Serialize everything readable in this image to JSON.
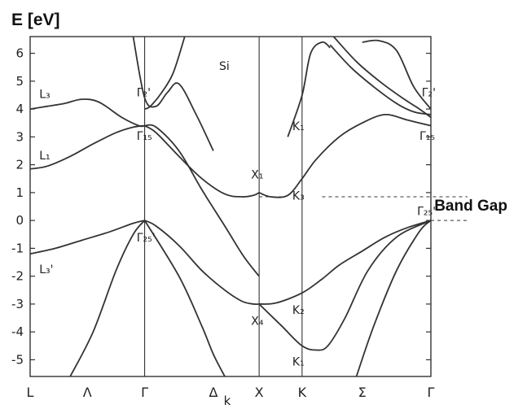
{
  "chart_data": {
    "type": "line",
    "title": "",
    "ylabel": "E [eV]",
    "ylim": [
      -5.6,
      6.6
    ],
    "yticks": [
      "6",
      "5",
      "4",
      "3",
      "2",
      "1",
      "0",
      "-1",
      "-2",
      "-3",
      "-4",
      "-5"
    ],
    "x_ticks": [
      {
        "label": "L",
        "pos": 0
      },
      {
        "label": "Λ",
        "pos": 0.5
      },
      {
        "label": "Γ",
        "pos": 1
      },
      {
        "label": "Δ",
        "pos": 1.6
      },
      {
        "label": "X",
        "pos": 2
      },
      {
        "label": "K",
        "pos": 2.375
      },
      {
        "label": "Σ",
        "pos": 2.9
      },
      {
        "label": "Γ",
        "pos": 3.5
      }
    ],
    "k_label": "k",
    "symmetry_lines": [
      1,
      2,
      2.375
    ],
    "grid": false,
    "series": [
      {
        "x": [
          0,
          0.22,
          0.46,
          0.7,
          0.9,
          1
        ],
        "y": [
          -1.2,
          -1.0,
          -0.7,
          -0.4,
          -0.1,
          0.0
        ]
      },
      {
        "x": [
          0.35,
          0.55,
          0.75,
          0.9,
          1
        ],
        "y": [
          -5.6,
          -4.0,
          -1.8,
          -0.5,
          0.0
        ]
      },
      {
        "x": [
          1,
          1.1,
          1.3,
          1.5,
          1.7,
          1.85,
          1.95,
          2
        ],
        "y": [
          0.0,
          -0.2,
          -0.9,
          -1.8,
          -2.5,
          -2.9,
          -3.0,
          -3.0
        ]
      },
      {
        "x": [
          1,
          1.3,
          1.5,
          1.6,
          1.7
        ],
        "y": [
          0.0,
          -2.0,
          -3.8,
          -4.8,
          -5.6
        ]
      },
      {
        "x": [
          2,
          2.15,
          2.375,
          2.55,
          2.7,
          2.9,
          3.1,
          3.3,
          3.5
        ],
        "y": [
          -3.0,
          -2.96,
          -2.6,
          -2.1,
          -1.6,
          -1.1,
          -0.6,
          -0.25,
          0.0
        ]
      },
      {
        "x": [
          2,
          2.2,
          2.375,
          2.5,
          2.6,
          2.75,
          2.95,
          3.2,
          3.5
        ],
        "y": [
          -3.0,
          -3.8,
          -4.5,
          -4.65,
          -4.5,
          -3.5,
          -1.8,
          -0.6,
          0.0
        ]
      },
      {
        "x": [
          2.85,
          3.0,
          3.2,
          3.4,
          3.5
        ],
        "y": [
          -5.6,
          -3.8,
          -1.8,
          -0.4,
          0.0
        ]
      },
      {
        "x": [
          0,
          0.15,
          0.35,
          0.55,
          0.75,
          0.9,
          1
        ],
        "y": [
          1.85,
          1.95,
          2.3,
          2.75,
          3.15,
          3.35,
          3.4
        ]
      },
      {
        "x": [
          1,
          1.1,
          1.3,
          1.5,
          1.7,
          1.85,
          1.95,
          2
        ],
        "y": [
          3.4,
          3.15,
          2.3,
          1.5,
          0.95,
          0.85,
          0.9,
          1.0
        ]
      },
      {
        "x": [
          1,
          1.1,
          1.3,
          1.5,
          1.7,
          1.85,
          1.95,
          2
        ],
        "y": [
          3.4,
          3.35,
          2.5,
          1.1,
          -0.2,
          -1.2,
          -1.75,
          -2.0
        ]
      },
      {
        "x": [
          2,
          2.1,
          2.25,
          2.375,
          2.5,
          2.7,
          2.9,
          3.1,
          3.3,
          3.5
        ],
        "y": [
          1.0,
          0.85,
          0.9,
          1.5,
          2.2,
          3.0,
          3.5,
          3.8,
          3.6,
          3.4
        ]
      },
      {
        "x": [
          0,
          0.15,
          0.3,
          0.45,
          0.6,
          0.8,
          0.95,
          1
        ],
        "y": [
          4.0,
          4.1,
          4.2,
          4.35,
          4.25,
          3.7,
          3.4,
          3.4
        ]
      },
      {
        "x": [
          0.9,
          1.0,
          1.1,
          1.2,
          1.3,
          1.45,
          1.6
        ],
        "y": [
          6.6,
          4.4,
          4.1,
          4.6,
          4.9,
          3.8,
          2.5
        ]
      },
      {
        "x": [
          1.0,
          1.05,
          1.15,
          1.25,
          1.35
        ],
        "y": [
          4.0,
          4.1,
          4.6,
          5.3,
          6.6
        ]
      },
      {
        "x": [
          2.25,
          2.375,
          2.45,
          2.55,
          2.62
        ],
        "y": [
          3.0,
          4.5,
          6.0,
          6.4,
          6.2
        ]
      },
      {
        "x": [
          2.62,
          2.8,
          3.0,
          3.2,
          3.35,
          3.5
        ],
        "y": [
          6.3,
          5.5,
          4.8,
          4.2,
          3.9,
          3.8
        ]
      },
      {
        "x": [
          2.65,
          2.85,
          3.05,
          3.25,
          3.4,
          3.5
        ],
        "y": [
          6.6,
          5.7,
          5.0,
          4.4,
          4.0,
          3.7
        ]
      },
      {
        "x": [
          2.9,
          3.05,
          3.2,
          3.35,
          3.5
        ],
        "y": [
          6.4,
          6.45,
          6.1,
          4.8,
          4.0
        ]
      }
    ],
    "band_gap_dashes": [
      {
        "x": [
          2.0,
          2.2
        ],
        "y": [
          0.85,
          0.85
        ]
      },
      {
        "x": [
          2.55,
          3.82
        ],
        "y": [
          0.85,
          0.85
        ]
      },
      {
        "x": [
          3.5,
          3.82
        ],
        "y": [
          0.0,
          0.0
        ]
      }
    ],
    "annotations": [
      {
        "text": "Si",
        "x": 1.65,
        "y": 5.4
      },
      {
        "text": "L₃",
        "x": 0.08,
        "y": 4.4
      },
      {
        "text": "L₁",
        "x": 0.08,
        "y": 2.2
      },
      {
        "text": "L₃'",
        "x": 0.08,
        "y": -1.9
      },
      {
        "text": "Γ₂'",
        "x": 0.93,
        "y": 4.45
      },
      {
        "text": "Γ₁₅",
        "x": 0.93,
        "y": 2.9
      },
      {
        "text": "Γ₂₅'",
        "x": 0.93,
        "y": -0.75
      },
      {
        "text": "X₁",
        "x": 1.93,
        "y": 1.5
      },
      {
        "text": "X₄",
        "x": 1.93,
        "y": -3.75
      },
      {
        "text": "K₁",
        "x": 2.29,
        "y": 3.25
      },
      {
        "text": "K₃",
        "x": 2.29,
        "y": 0.75
      },
      {
        "text": "K₂",
        "x": 2.29,
        "y": -3.35
      },
      {
        "text": "K₁",
        "x": 2.29,
        "y": -5.2
      },
      {
        "text": "Γ₂'",
        "x": 3.42,
        "y": 4.45
      },
      {
        "text": "Γ₁₅",
        "x": 3.4,
        "y": 2.9
      },
      {
        "text": "Γ₂₅'",
        "x": 3.38,
        "y": 0.2
      },
      {
        "text": "Band Gap",
        "x": 3.53,
        "y": 0.35,
        "bold": true
      }
    ]
  }
}
